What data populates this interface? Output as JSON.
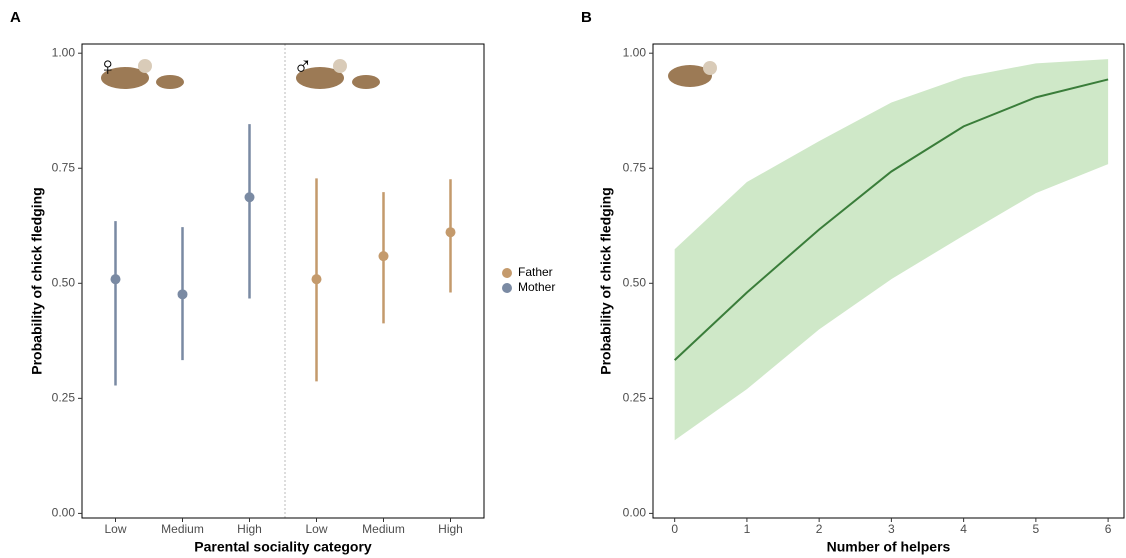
{
  "chart_data": [
    {
      "type": "errorbar",
      "panel_label": "A",
      "x_label": "Parental sociality category",
      "y_label": "Probability of chick fledging",
      "symbols": [
        "♀",
        "♂"
      ],
      "categories": [
        "Low",
        "Medium",
        "High",
        "Low",
        "Medium",
        "High"
      ],
      "ylim": [
        -0.01,
        1.02
      ],
      "yticks": [
        {
          "value": 0,
          "label": "0.00"
        },
        {
          "value": 0.25,
          "label": "0.25"
        },
        {
          "value": 0.5,
          "label": "0.50"
        },
        {
          "value": 0.75,
          "label": "0.75"
        },
        {
          "value": 1,
          "label": "1.00"
        }
      ],
      "legend": "right",
      "series": [
        {
          "name": "Father",
          "color": "#c49a6c",
          "values": [
            null,
            null,
            null,
            0.509,
            0.559,
            0.611
          ],
          "lower": [
            null,
            null,
            null,
            0.287,
            0.413,
            0.48
          ],
          "upper": [
            null,
            null,
            null,
            0.728,
            0.698,
            0.726
          ]
        },
        {
          "name": "Mother",
          "color": "#7a8aa3",
          "values": [
            0.509,
            0.476,
            0.687,
            null,
            null,
            null
          ],
          "lower": [
            0.278,
            0.333,
            0.467,
            null,
            null,
            null
          ],
          "upper": [
            0.635,
            0.622,
            0.846,
            null,
            null,
            null
          ]
        }
      ]
    },
    {
      "type": "ribbon",
      "panel_label": "B",
      "x_label": "Number of helpers",
      "y_label": "Probability of chick fledging",
      "x": [
        0,
        1,
        2,
        3,
        4,
        5,
        6
      ],
      "xlim": [
        -0.3,
        6.22
      ],
      "xticks": [
        0,
        1,
        2,
        3,
        4,
        5,
        6
      ],
      "ylim": [
        -0.01,
        1.02
      ],
      "yticks": [
        {
          "value": 0,
          "label": "0.00"
        },
        {
          "value": 0.25,
          "label": "0.25"
        },
        {
          "value": 0.5,
          "label": "0.50"
        },
        {
          "value": 0.75,
          "label": "0.75"
        },
        {
          "value": 1,
          "label": "1.00"
        }
      ],
      "line_color": "#3a7d3a",
      "band_color": "#cfe8c8",
      "values": [
        0.333,
        0.48,
        0.617,
        0.743,
        0.841,
        0.904,
        0.943
      ],
      "lower": [
        0.159,
        0.27,
        0.4,
        0.509,
        0.604,
        0.696,
        0.759
      ],
      "upper": [
        0.574,
        0.72,
        0.809,
        0.893,
        0.948,
        0.978,
        0.987
      ]
    }
  ]
}
